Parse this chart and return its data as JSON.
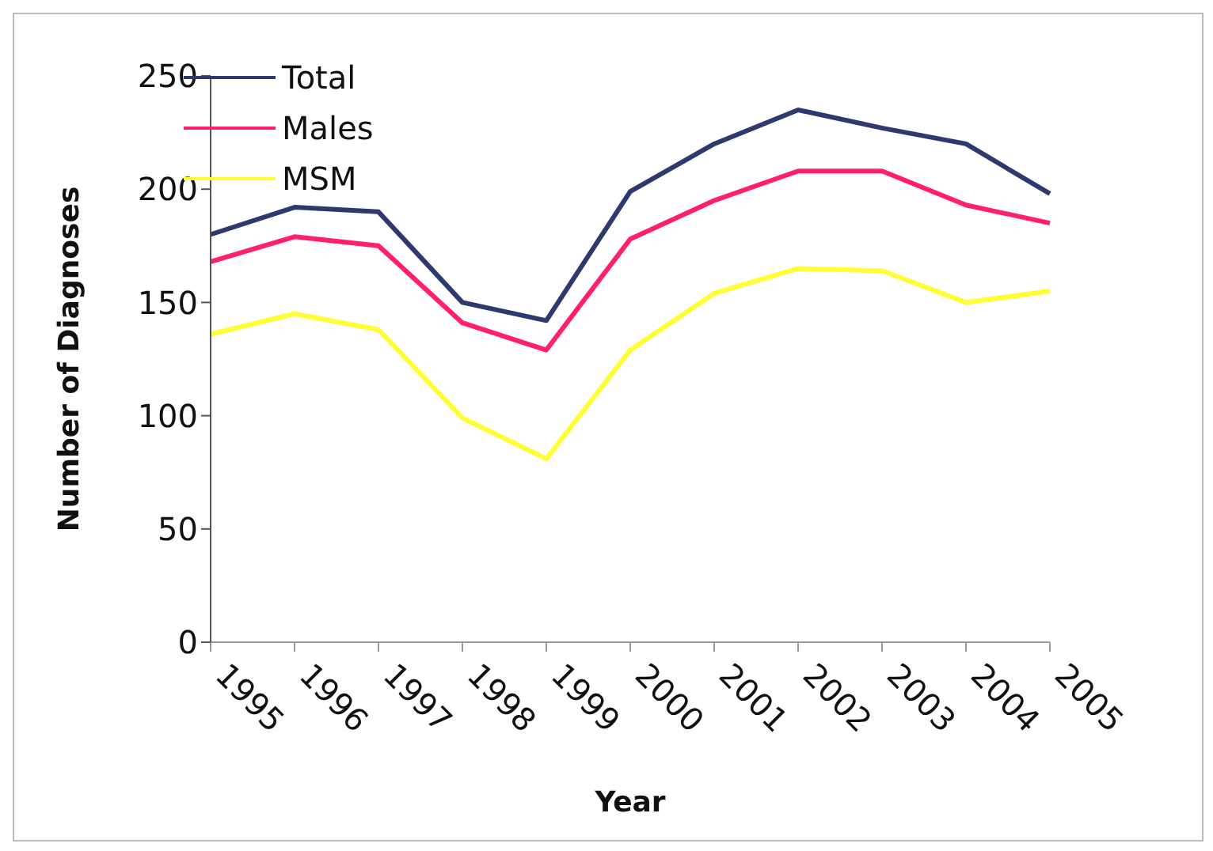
{
  "chart_data": {
    "type": "line",
    "xlabel": "Year",
    "ylabel": "Number of Diagnoses",
    "categories": [
      "1995",
      "1996",
      "1997",
      "1998",
      "1999",
      "2000",
      "2001",
      "2002",
      "2003",
      "2004",
      "2005"
    ],
    "series": [
      {
        "name": "Total",
        "color": "#2e3a6e",
        "values": [
          180,
          192,
          190,
          150,
          142,
          199,
          220,
          235,
          227,
          220,
          198
        ]
      },
      {
        "name": "Males",
        "color": "#ff1f6e",
        "values": [
          168,
          179,
          175,
          141,
          129,
          178,
          195,
          208,
          208,
          193,
          185
        ]
      },
      {
        "name": "MSM",
        "color": "#ffff33",
        "values": [
          136,
          145,
          138,
          99,
          81,
          129,
          154,
          165,
          164,
          150,
          155
        ]
      }
    ],
    "ylim": [
      0,
      250
    ],
    "yticks": [
      0,
      50,
      100,
      150,
      200,
      250
    ],
    "grid": false,
    "legend": "top left",
    "marker": "none",
    "line_style": "solid"
  }
}
